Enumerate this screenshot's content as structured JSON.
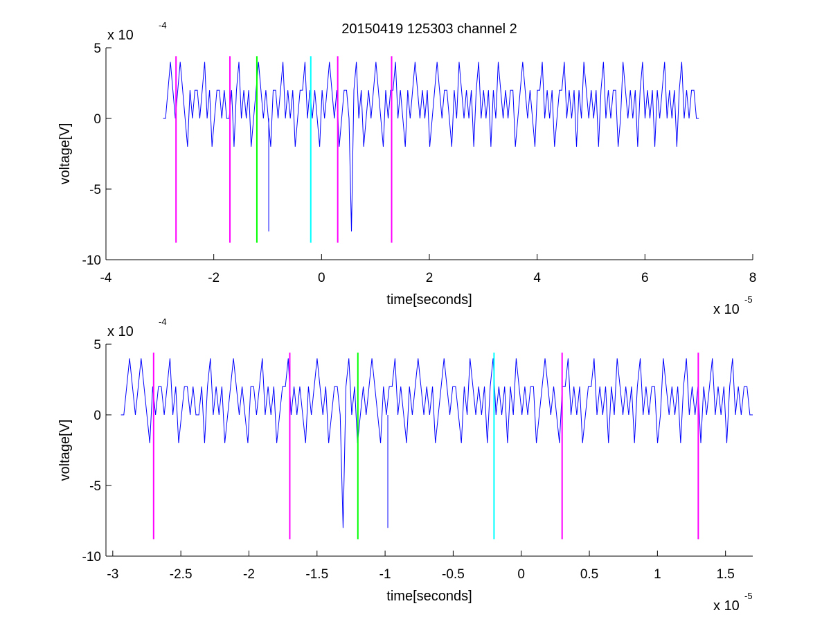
{
  "figure": {
    "title": "20150419 125303 channel 2"
  },
  "chart_data": [
    {
      "type": "line",
      "title": "20150419 125303 channel 2",
      "xlabel": "time[seconds]",
      "ylabel": "voltage[V]",
      "x_exponent_label": "x 10",
      "x_exponent_power": "-5",
      "y_exponent_label": "x 10",
      "y_exponent_power": "-4",
      "xlim": [
        -4,
        8
      ],
      "ylim": [
        -10,
        5
      ],
      "x_ticks": [
        -4,
        -2,
        0,
        2,
        4,
        6,
        8
      ],
      "x_tick_labels": [
        "-4",
        "-2",
        "0",
        "2",
        "4",
        "6",
        "8"
      ],
      "y_ticks": [
        -10,
        -5,
        0,
        5
      ],
      "y_tick_labels": [
        "-10",
        "-5",
        "0",
        "5"
      ],
      "grid": false,
      "signal": {
        "color": "#0000ff",
        "x_start": -2.94,
        "x_end": 7.0,
        "levels": [
          -2,
          0,
          2,
          4
        ],
        "spike": {
          "x": -0.98,
          "y": -8
        },
        "samples": [
          0,
          0,
          2,
          4,
          2,
          0,
          2,
          4,
          2,
          0,
          -2,
          2,
          0,
          2,
          2,
          0,
          2,
          4,
          0,
          2,
          -2,
          0,
          2,
          2,
          0,
          2,
          0,
          0,
          2,
          -2,
          2,
          4,
          0,
          2,
          0,
          2,
          -2,
          0,
          2,
          4,
          2,
          0,
          2,
          0,
          -2,
          2,
          2,
          0,
          2,
          4,
          0,
          2,
          0,
          2,
          -2,
          0,
          2,
          2,
          4,
          0,
          2,
          0,
          2,
          0,
          -2,
          2,
          0,
          2,
          4,
          2,
          0,
          2,
          -2,
          0,
          2,
          2,
          0,
          -8,
          2,
          4,
          0,
          2,
          -2,
          0,
          2,
          0,
          2,
          4,
          2,
          0,
          -2,
          2,
          0,
          2,
          2,
          4,
          0,
          2,
          0,
          -2,
          2,
          0,
          2,
          4,
          2,
          0,
          2,
          0,
          2,
          -2,
          0,
          2,
          4,
          2,
          0,
          2,
          2,
          0,
          -2,
          2,
          0,
          4,
          2,
          0,
          2,
          0,
          2,
          -2,
          2,
          4,
          0,
          2,
          0,
          2,
          -2,
          2,
          0,
          4,
          2,
          0,
          2,
          0,
          2,
          2,
          -2,
          0,
          2,
          4,
          2,
          0,
          2,
          0,
          -2,
          2,
          2,
          4,
          0,
          2,
          0,
          2,
          -2,
          0,
          2,
          2,
          4,
          0,
          2,
          0,
          2,
          -2,
          2,
          0,
          4,
          2,
          0,
          2,
          0,
          2,
          -2,
          2,
          4,
          0,
          2,
          0,
          2,
          2,
          -2,
          0,
          4,
          2,
          0,
          2,
          0,
          2,
          -2,
          2,
          4,
          0,
          2,
          0,
          2,
          -2,
          2,
          0,
          2,
          4,
          0,
          2,
          0,
          2,
          -2,
          2,
          4,
          0,
          2,
          0,
          2,
          2,
          0,
          0
        ]
      },
      "markers": [
        {
          "x": -2.7,
          "y_top": 4.4,
          "y_bottom": -8.8,
          "color": "#ff00ff"
        },
        {
          "x": -1.7,
          "y_top": 4.4,
          "y_bottom": -8.8,
          "color": "#ff00ff"
        },
        {
          "x": -1.2,
          "y_top": 4.4,
          "y_bottom": -8.8,
          "color": "#00ff00"
        },
        {
          "x": -0.2,
          "y_top": 4.4,
          "y_bottom": -8.8,
          "color": "#00ffff"
        },
        {
          "x": 0.3,
          "y_top": 4.4,
          "y_bottom": -8.8,
          "color": "#ff00ff"
        },
        {
          "x": 1.3,
          "y_top": 4.4,
          "y_bottom": -8.8,
          "color": "#ff00ff"
        }
      ]
    },
    {
      "type": "line",
      "title": "",
      "xlabel": "time[seconds]",
      "ylabel": "voltage[V]",
      "x_exponent_label": "x 10",
      "x_exponent_power": "-5",
      "y_exponent_label": "x 10",
      "y_exponent_power": "-4",
      "xlim": [
        -3.05,
        1.7
      ],
      "ylim": [
        -10,
        5
      ],
      "x_ticks": [
        -3,
        -2.5,
        -2,
        -1.5,
        -1,
        -0.5,
        0,
        0.5,
        1,
        1.5
      ],
      "x_tick_labels": [
        "-3",
        "-2.5",
        "-2",
        "-1.5",
        "-1",
        "-0.5",
        "0",
        "0.5",
        "1",
        "1.5"
      ],
      "y_ticks": [
        -10,
        -5,
        0,
        5
      ],
      "y_tick_labels": [
        "-10",
        "-5",
        "0",
        "5"
      ],
      "grid": false,
      "signal": {
        "color": "#0000ff",
        "x_start": -2.94,
        "x_end": 1.7,
        "levels": [
          -2,
          0,
          2,
          4
        ],
        "spike": {
          "x": -0.98,
          "y": -8
        },
        "samples": [
          0,
          0,
          2,
          4,
          2,
          0,
          2,
          4,
          2,
          0,
          -2,
          2,
          0,
          2,
          2,
          0,
          2,
          4,
          0,
          2,
          -2,
          0,
          2,
          2,
          0,
          2,
          0,
          0,
          2,
          -2,
          2,
          4,
          0,
          2,
          0,
          2,
          -2,
          0,
          2,
          4,
          2,
          0,
          2,
          0,
          -2,
          2,
          2,
          0,
          2,
          4,
          0,
          2,
          0,
          2,
          -2,
          0,
          2,
          2,
          4,
          0,
          2,
          0,
          2,
          0,
          -2,
          2,
          0,
          2,
          4,
          2,
          0,
          2,
          -2,
          0,
          2,
          2,
          0,
          -8,
          2,
          4,
          0,
          2,
          -2,
          0,
          2,
          0,
          2,
          4,
          2,
          0,
          -2,
          2,
          0,
          2,
          2,
          4,
          0,
          2,
          0,
          -2,
          2,
          0,
          2,
          4,
          2,
          0,
          2,
          0,
          2,
          -2,
          0,
          2,
          4,
          2,
          0,
          2,
          2,
          0,
          -2,
          2,
          0,
          4,
          2,
          0,
          2,
          0,
          2,
          -2,
          2,
          4,
          0,
          2,
          0,
          2,
          -2,
          2,
          0,
          4,
          2,
          0,
          2,
          0,
          2,
          2,
          -2,
          0,
          2,
          4,
          2,
          0,
          2,
          0,
          -2,
          2,
          2,
          4,
          0,
          2,
          0,
          2,
          -2,
          0,
          2,
          2,
          4,
          0,
          2,
          0,
          2,
          -2,
          2,
          0,
          4,
          2,
          0,
          2,
          0,
          2,
          -2,
          2,
          4,
          0,
          2,
          0,
          2,
          2,
          -2,
          0,
          4,
          2,
          0,
          2,
          0,
          2,
          -2,
          2,
          4,
          0,
          2,
          0,
          2,
          -2,
          2,
          0,
          2,
          4,
          0,
          2,
          0,
          2,
          -2,
          2,
          4,
          0,
          2,
          0,
          2,
          2,
          0,
          0
        ]
      },
      "markers": [
        {
          "x": -2.7,
          "y_top": 4.4,
          "y_bottom": -8.8,
          "color": "#ff00ff"
        },
        {
          "x": -1.7,
          "y_top": 4.4,
          "y_bottom": -8.8,
          "color": "#ff00ff"
        },
        {
          "x": -1.2,
          "y_top": 4.4,
          "y_bottom": -8.8,
          "color": "#00ff00"
        },
        {
          "x": -0.2,
          "y_top": 4.4,
          "y_bottom": -8.8,
          "color": "#00ffff"
        },
        {
          "x": 0.3,
          "y_top": 4.4,
          "y_bottom": -8.8,
          "color": "#ff00ff"
        },
        {
          "x": 1.3,
          "y_top": 4.4,
          "y_bottom": -8.8,
          "color": "#ff00ff"
        }
      ]
    }
  ]
}
